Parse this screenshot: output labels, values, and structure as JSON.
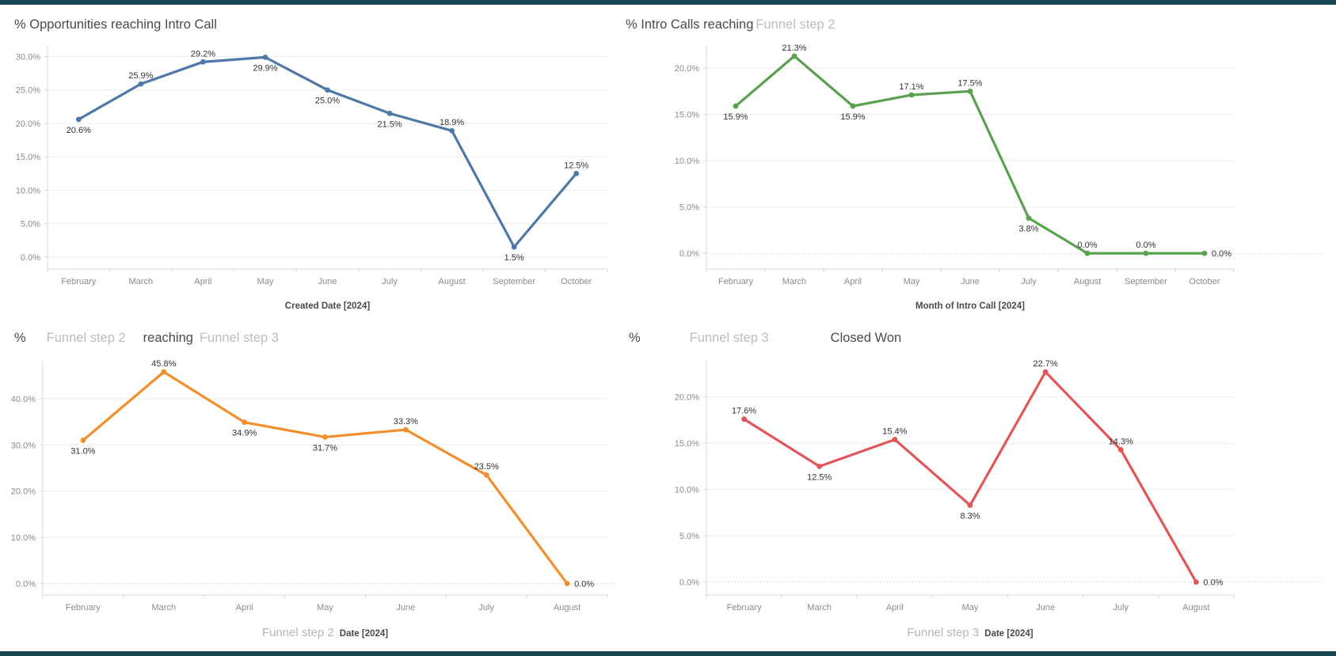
{
  "page": {
    "accent_bar_color": "#174753",
    "background_color": "#ffffff"
  },
  "chart_data": [
    {
      "type": "line",
      "title_parts": [
        {
          "text": "% Opportunities reaching Intro Call",
          "muted": false,
          "ml": 0
        }
      ],
      "color": "#4e79a7",
      "categories": [
        "February",
        "March",
        "April",
        "May",
        "June",
        "July",
        "August",
        "September",
        "October"
      ],
      "values": [
        20.6,
        25.9,
        29.2,
        29.9,
        25.0,
        21.5,
        18.9,
        1.5,
        12.5
      ],
      "labels": [
        "20.6%",
        "25.9%",
        "29.2%",
        "29.9%",
        "25.0%",
        "21.5%",
        "18.9%",
        "1.5%",
        "12.5%"
      ],
      "label_pos": [
        "below",
        "above",
        "above",
        "below",
        "below",
        "below",
        "above",
        "below",
        "above"
      ],
      "xlabel_parts": [
        {
          "text": "Created Date [2024]",
          "muted": false
        }
      ],
      "yticks": [
        0,
        5,
        10,
        15,
        20,
        25,
        30
      ],
      "ytick_labels": [
        "0.0%",
        "5.0%",
        "10.0%",
        "15.0%",
        "20.0%",
        "25.0%",
        "30.0%"
      ],
      "ylim": [
        -1.8,
        31.6
      ],
      "zero_line_dotted": false,
      "grid": true,
      "legend": "none"
    },
    {
      "type": "line",
      "title_parts": [
        {
          "text": "% Intro Calls reaching",
          "muted": false,
          "ml": 0
        },
        {
          "text": "Funnel step 2",
          "muted": true,
          "ml": 3
        }
      ],
      "color": "#59a14f",
      "categories": [
        "February",
        "March",
        "April",
        "May",
        "June",
        "July",
        "August",
        "September",
        "October"
      ],
      "values": [
        15.9,
        21.3,
        15.9,
        17.1,
        17.5,
        3.8,
        0.0,
        0.0,
        0.0
      ],
      "labels": [
        "15.9%",
        "21.3%",
        "15.9%",
        "17.1%",
        "17.5%",
        "3.8%",
        "0.0%",
        "0.0%",
        "0.0%"
      ],
      "label_pos": [
        "below",
        "above",
        "below",
        "above",
        "above",
        "below",
        "above",
        "above",
        "right"
      ],
      "xlabel_parts": [
        {
          "text": "Month of Intro Call [2024]",
          "muted": false
        }
      ],
      "yticks": [
        0,
        5,
        10,
        15,
        20
      ],
      "ytick_labels": [
        "0.0%",
        "5.0%",
        "10.0%",
        "15.0%",
        "20.0%"
      ],
      "ylim": [
        -1.7,
        22.4
      ],
      "zero_line_dotted": true,
      "grid": true,
      "legend": "none"
    },
    {
      "type": "line",
      "title_parts": [
        {
          "text": "%",
          "muted": false,
          "ml": 0
        },
        {
          "text": "Funnel step 2",
          "muted": true,
          "ml": 26
        },
        {
          "text": "reaching",
          "muted": false,
          "ml": 22
        },
        {
          "text": "Funnel step 3",
          "muted": true,
          "ml": 8
        }
      ],
      "color": "#f28e2b",
      "categories": [
        "February",
        "March",
        "April",
        "May",
        "June",
        "July",
        "August"
      ],
      "values": [
        31.0,
        45.8,
        34.9,
        31.7,
        33.3,
        23.5,
        0.0
      ],
      "labels": [
        "31.0%",
        "45.8%",
        "34.9%",
        "31.7%",
        "33.3%",
        "23.5%",
        "0.0%"
      ],
      "label_pos": [
        "below",
        "above",
        "below",
        "below",
        "above",
        "above",
        "right"
      ],
      "xlabel_parts": [
        {
          "text": "Funnel step 2",
          "muted": true
        },
        {
          "text": "Date [2024]",
          "muted": false
        }
      ],
      "yticks": [
        0,
        10,
        20,
        30,
        40
      ],
      "ytick_labels": [
        "0.0%",
        "10.0%",
        "20.0%",
        "30.0%",
        "40.0%"
      ],
      "ylim": [
        -2.5,
        48.2
      ],
      "zero_line_dotted": true,
      "grid": true,
      "legend": "none"
    },
    {
      "type": "line",
      "title_parts": [
        {
          "text": "%",
          "muted": false,
          "ml": 0
        },
        {
          "text": "Funnel step 3",
          "muted": true,
          "ml": 62
        },
        {
          "text": "Closed Won",
          "muted": false,
          "ml": 78
        }
      ],
      "color": "#e15759",
      "categories": [
        "February",
        "March",
        "April",
        "May",
        "June",
        "July",
        "August"
      ],
      "values": [
        17.6,
        12.5,
        15.4,
        8.3,
        22.7,
        14.3,
        0.0
      ],
      "labels": [
        "17.6%",
        "12.5%",
        "15.4%",
        "8.3%",
        "22.7%",
        "14.3%",
        "0.0%"
      ],
      "label_pos": [
        "above",
        "below",
        "above",
        "below",
        "above",
        "above",
        "right"
      ],
      "xlabel_parts": [
        {
          "text": "Funnel step 3",
          "muted": true
        },
        {
          "text": "Date [2024]",
          "muted": false
        }
      ],
      "yticks": [
        0,
        5,
        10,
        15,
        20
      ],
      "ytick_labels": [
        "0.0%",
        "5.0%",
        "10.0%",
        "15.0%",
        "20.0%"
      ],
      "ylim": [
        -1.4,
        23.9
      ],
      "zero_line_dotted": true,
      "grid": true,
      "legend": "none"
    }
  ]
}
